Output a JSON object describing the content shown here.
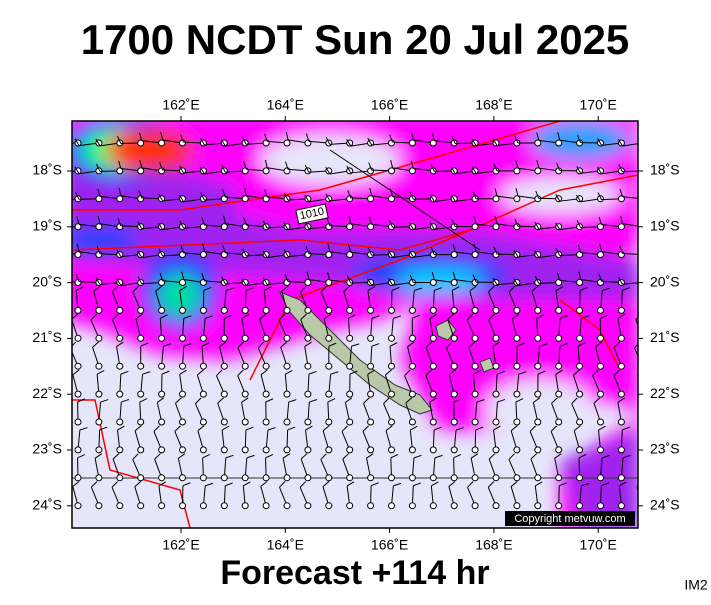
{
  "header": {
    "title": "1700 NCDT Sun 20 Jul 2025"
  },
  "map": {
    "lon_labels": [
      "162˚E",
      "164˚E",
      "166˚E",
      "168˚E",
      "170˚E"
    ],
    "lat_labels": [
      "18˚S",
      "19˚S",
      "20˚S",
      "21˚S",
      "22˚S",
      "23˚S",
      "24˚S"
    ],
    "isobar_label": "1010",
    "copyright": "Copyright metvuw.com"
  },
  "footer": {
    "forecast": "Forecast +114 hr",
    "corner_label": "IM2"
  }
}
